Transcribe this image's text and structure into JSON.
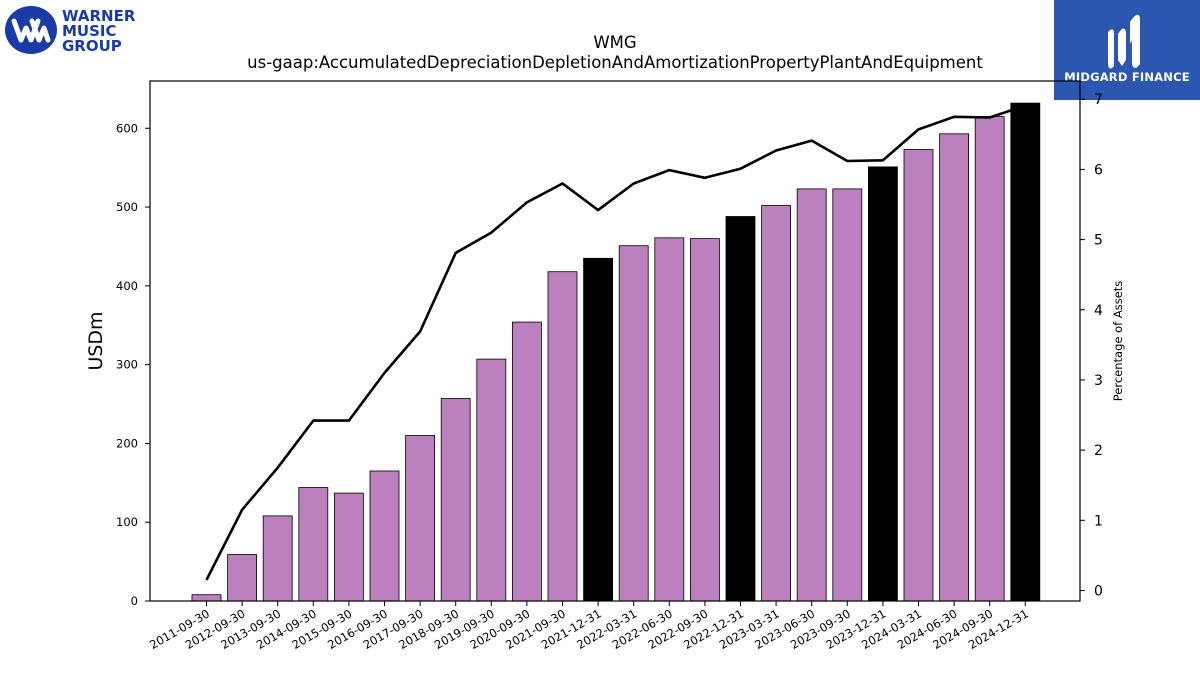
{
  "logos": {
    "left_lines": [
      "WARNER",
      "MUSIC",
      "GROUP"
    ],
    "right_text": "MIDGARD FINANCE"
  },
  "colors": {
    "bar": "#bb80bd",
    "bar_highlight": "#000000",
    "line": "#000000",
    "logo_blue": "#1a3aa8",
    "mf_blue": "#2b57b0"
  },
  "chart_data": {
    "type": "bar",
    "title": "WMG",
    "subtitle": "us-gaap:AccumulatedDepreciationDepletionAndAmortizationPropertyPlantAndEquipment",
    "ylabel": "USDm",
    "y2label": "Percentage of Assets",
    "ylim": [
      0,
      660
    ],
    "y2lim": [
      -0.15,
      7.26
    ],
    "yticks": [
      0,
      100,
      200,
      300,
      400,
      500,
      600
    ],
    "y2ticks": [
      0,
      1,
      2,
      3,
      4,
      5,
      6,
      7
    ],
    "categories": [
      "2011-09-30",
      "2012-09-30",
      "2013-09-30",
      "2014-09-30",
      "2015-09-30",
      "2016-09-30",
      "2017-09-30",
      "2018-09-30",
      "2019-09-30",
      "2020-09-30",
      "2021-09-30",
      "2021-12-31",
      "2022-03-31",
      "2022-06-30",
      "2022-09-30",
      "2022-12-31",
      "2023-03-31",
      "2023-06-30",
      "2023-09-30",
      "2023-12-31",
      "2024-03-31",
      "2024-06-30",
      "2024-09-30",
      "2024-12-31"
    ],
    "series": [
      {
        "axis": "left",
        "type": "bar",
        "values": [
          8,
          59,
          108,
          144,
          137,
          165,
          210,
          257,
          307,
          354,
          418,
          435,
          451,
          461,
          460,
          488,
          502,
          523,
          523,
          551,
          573,
          593,
          615,
          632
        ],
        "highlight": [
          false,
          false,
          false,
          false,
          false,
          false,
          false,
          false,
          false,
          false,
          false,
          true,
          false,
          false,
          false,
          true,
          false,
          false,
          false,
          true,
          false,
          false,
          false,
          true
        ]
      },
      {
        "axis": "right",
        "type": "line",
        "values": [
          0.15,
          1.15,
          1.75,
          2.42,
          2.42,
          3.1,
          3.69,
          4.81,
          5.1,
          5.53,
          5.8,
          5.42,
          5.8,
          5.99,
          5.88,
          6.01,
          6.27,
          6.41,
          6.12,
          6.13,
          6.57,
          6.75,
          6.74,
          6.91
        ]
      }
    ],
    "grid": false,
    "legend": "none"
  }
}
